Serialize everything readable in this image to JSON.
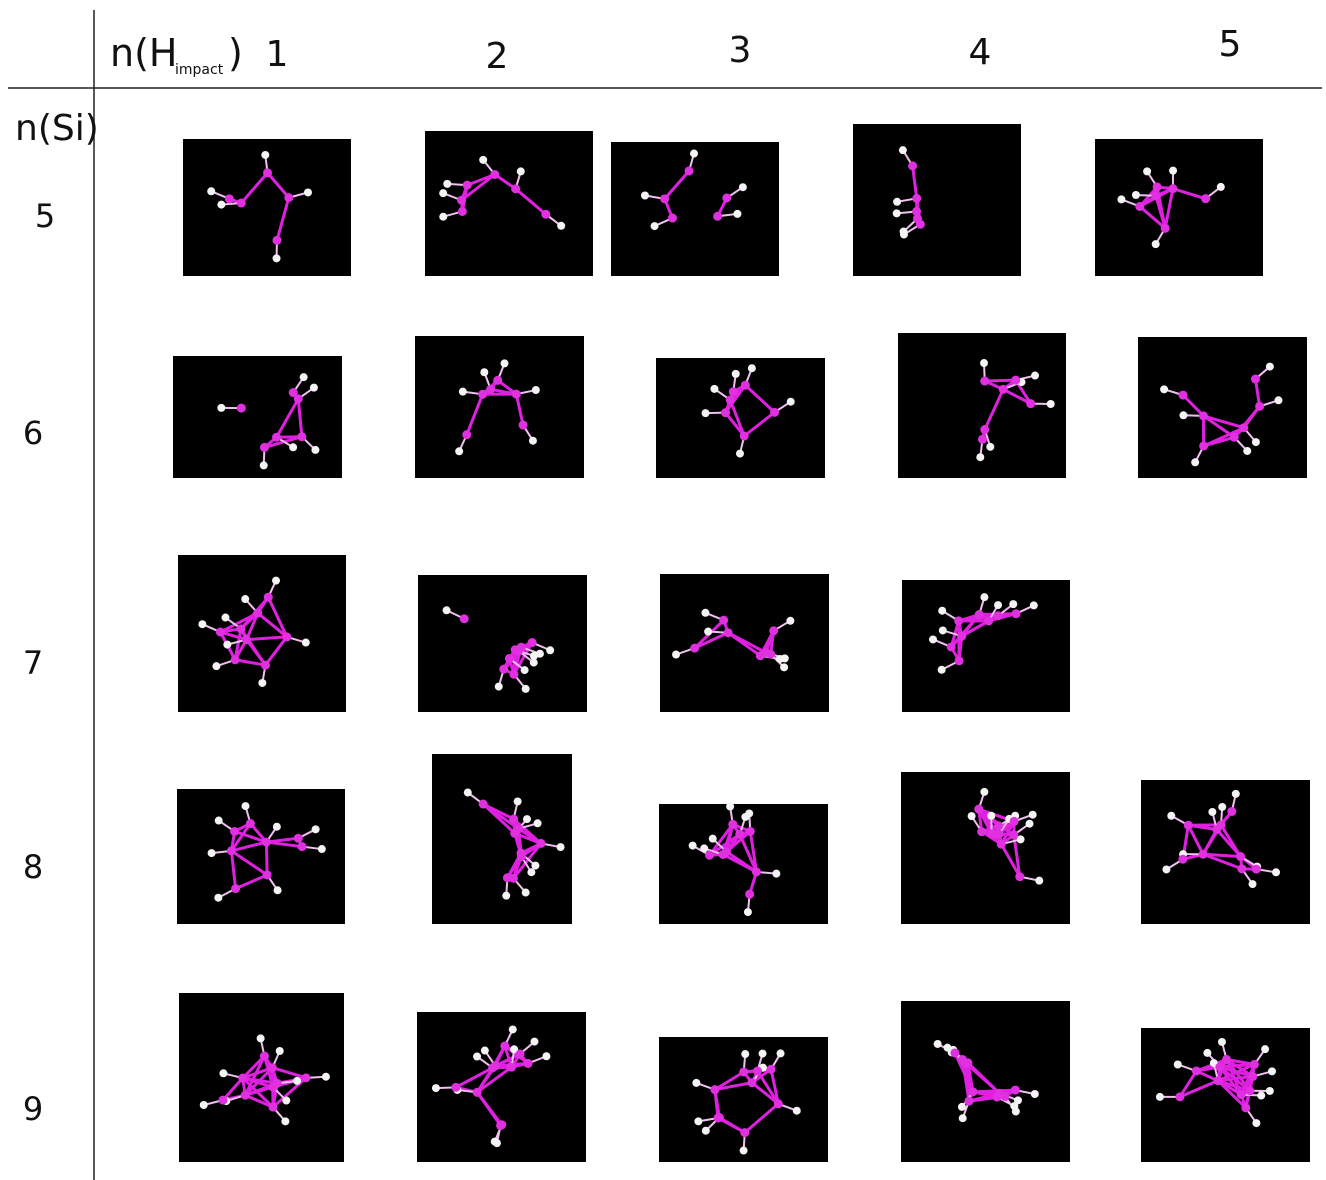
{
  "header": {
    "corner_base": "n(H",
    "corner_subscript": "impact",
    "corner_close": ")",
    "columns": [
      "1",
      "2",
      "3",
      "4",
      "5"
    ]
  },
  "rows": {
    "title": "n(Si)",
    "labels": [
      "5",
      "6",
      "7",
      "8",
      "9"
    ]
  }
}
